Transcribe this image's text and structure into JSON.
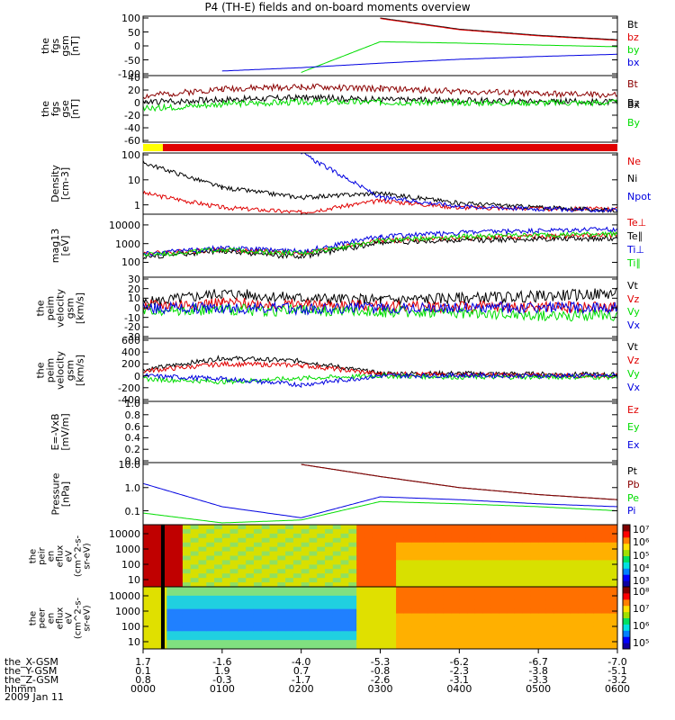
{
  "title": "P4 (TH-E) fields and on-board moments overview",
  "date_label": "2009 Jan 11",
  "x_axis_rows": [
    {
      "label": "the_X-GSM",
      "values": [
        "1.7",
        "-1.6",
        "-4.0",
        "-5.3",
        "-6.2",
        "-6.7",
        "-7.0"
      ]
    },
    {
      "label": "the_Y-GSM",
      "values": [
        "0.1",
        "1.9",
        "0.7",
        "-0.8",
        "-2.3",
        "-3.8",
        "-5.1"
      ]
    },
    {
      "label": "the_Z-GSM",
      "values": [
        "0.8",
        "-0.3",
        "-1.7",
        "-2.6",
        "-3.1",
        "-3.3",
        "-3.2"
      ]
    },
    {
      "label": "hhmm",
      "values": [
        "0000",
        "0100",
        "0200",
        "0300",
        "0400",
        "0500",
        "0600"
      ]
    }
  ],
  "colors": {
    "black": "#000000",
    "red": "#e00000",
    "green": "#00dd00",
    "blue": "#0000e0",
    "yellow": "#ffff00",
    "brown": "#8b0000",
    "orange": "#ff8c00"
  },
  "chart_data": [
    {
      "id": "fgs_gsm",
      "type": "line",
      "ytitle": [
        "the",
        "fgs",
        "gsm",
        "[nT]"
      ],
      "yticks": [
        "100",
        "50",
        "0",
        "-50",
        "-100"
      ],
      "ylim": [
        -100,
        100
      ],
      "x": [
        "0000",
        "0100",
        "0200",
        "0300",
        "0400",
        "0500",
        "0600"
      ],
      "series": [
        {
          "name": "Bt",
          "color": "black",
          "values": [
            null,
            null,
            null,
            100,
            60,
            38,
            22
          ]
        },
        {
          "name": "bz",
          "color": "red",
          "values": [
            null,
            null,
            null,
            98,
            58,
            36,
            20
          ]
        },
        {
          "name": "by",
          "color": "green",
          "values": [
            null,
            null,
            -95,
            15,
            10,
            3,
            -3
          ]
        },
        {
          "name": "bx",
          "color": "blue",
          "values": [
            null,
            -90,
            -78,
            -62,
            -48,
            -38,
            -30
          ]
        }
      ]
    },
    {
      "id": "fgs_gse",
      "type": "line",
      "ytitle": [
        "the",
        "fgs",
        "gse",
        "[nT]"
      ],
      "yticks": [
        "40",
        "20",
        "0",
        "-20",
        "-40",
        "-60"
      ],
      "ylim": [
        -60,
        40
      ],
      "x": [
        "0000",
        "0100",
        "0200",
        "0300",
        "0400",
        "0500",
        "0600"
      ],
      "legend_label": "Bx",
      "series": [
        {
          "name": "Bt",
          "color": "brown",
          "values": [
            10,
            22,
            25,
            22,
            18,
            14,
            12
          ]
        },
        {
          "name": "Bz",
          "color": "black",
          "values": [
            0,
            5,
            8,
            5,
            3,
            2,
            1
          ]
        },
        {
          "name": "By",
          "color": "green",
          "values": [
            -10,
            -2,
            1,
            1,
            0,
            0,
            0
          ]
        }
      ]
    },
    {
      "id": "mode_bar",
      "type": "bar",
      "segments": [
        {
          "color": "yellow",
          "from": "0000",
          "to": "0015"
        },
        {
          "color": "red",
          "from": "0015",
          "to": "0600"
        }
      ]
    },
    {
      "id": "density",
      "type": "line",
      "ytitle": [
        "Density",
        "[cm-3]"
      ],
      "yscale": "log",
      "yticks": [
        "100",
        "10",
        "1"
      ],
      "ylim": [
        0.5,
        100
      ],
      "x": [
        "0000",
        "0100",
        "0200",
        "0300",
        "0400",
        "0500",
        "0600"
      ],
      "series": [
        {
          "name": "Ne",
          "color": "red",
          "values": [
            3,
            0.8,
            0.5,
            1.5,
            0.8,
            0.7,
            0.7
          ]
        },
        {
          "name": "Ni",
          "color": "black",
          "values": [
            50,
            5,
            2,
            3,
            1.2,
            0.8,
            0.6
          ]
        },
        {
          "name": "Npot",
          "color": "blue",
          "values": [
            null,
            null,
            120,
            2,
            0.9,
            0.7,
            0.6
          ]
        }
      ]
    },
    {
      "id": "temperature",
      "type": "line",
      "ytitle": [
        "mag13",
        "[eV]"
      ],
      "yscale": "log",
      "yticks": [
        "10000",
        "1000",
        "100"
      ],
      "ylim": [
        20,
        30000
      ],
      "x": [
        "0000",
        "0100",
        "0200",
        "0300",
        "0400",
        "0500",
        "0600"
      ],
      "series": [
        {
          "name": "Te⊥",
          "color": "red",
          "values": [
            300,
            500,
            300,
            1500,
            2000,
            2500,
            2800
          ]
        },
        {
          "name": "Te∥",
          "color": "black",
          "values": [
            200,
            400,
            200,
            1200,
            1500,
            1800,
            2000
          ]
        },
        {
          "name": "Ti⊥",
          "color": "blue",
          "values": [
            300,
            600,
            400,
            2500,
            4000,
            5000,
            6000
          ]
        },
        {
          "name": "Ti∥",
          "color": "green",
          "values": [
            250,
            500,
            300,
            1500,
            2500,
            3000,
            3500
          ]
        }
      ]
    },
    {
      "id": "peim_velocity_gsm",
      "type": "line",
      "ytitle": [
        "the",
        "peim",
        "velocity",
        "gsm",
        "[km/s]"
      ],
      "yticks": [
        "30",
        "20",
        "10",
        "0",
        "-10",
        "-20",
        "-30"
      ],
      "ylim": [
        -30,
        30
      ],
      "x": [
        "0000",
        "0100",
        "0200",
        "0300",
        "0400",
        "0500",
        "0600"
      ],
      "series": [
        {
          "name": "Vt",
          "color": "black",
          "values": [
            5,
            15,
            10,
            8,
            10,
            12,
            15
          ]
        },
        {
          "name": "Vz",
          "color": "red",
          "values": [
            2,
            5,
            3,
            2,
            1,
            1,
            1
          ]
        },
        {
          "name": "Vy",
          "color": "green",
          "values": [
            -2,
            -2,
            -3,
            -4,
            -5,
            -8,
            -8
          ]
        },
        {
          "name": "Vx",
          "color": "blue",
          "values": [
            0,
            0,
            -1,
            0,
            0,
            0,
            0
          ]
        }
      ]
    },
    {
      "id": "peim_velocity_gsm_2",
      "type": "line",
      "ytitle": [
        "the",
        "peim",
        "velocity",
        "gsm",
        "[km/s]"
      ],
      "yticks": [
        "600",
        "400",
        "200",
        "0",
        "-200",
        "-400"
      ],
      "ylim": [
        -400,
        600
      ],
      "x": [
        "0000",
        "0100",
        "0200",
        "0300",
        "0400",
        "0500",
        "0600"
      ],
      "series": [
        {
          "name": "Vt",
          "color": "black",
          "values": [
            100,
            300,
            250,
            40,
            40,
            30,
            20
          ]
        },
        {
          "name": "Vz",
          "color": "red",
          "values": [
            80,
            200,
            180,
            30,
            20,
            10,
            0
          ]
        },
        {
          "name": "Vy",
          "color": "green",
          "values": [
            -50,
            -100,
            -40,
            0,
            -20,
            -20,
            -20
          ]
        },
        {
          "name": "Vx",
          "color": "blue",
          "values": [
            0,
            -50,
            -150,
            0,
            10,
            0,
            0
          ]
        }
      ]
    },
    {
      "id": "exb",
      "type": "line",
      "ytitle": [
        "E=-VxB",
        "[mV/m]"
      ],
      "yticks": [
        "1.0",
        "0.8",
        "0.6",
        "0.4",
        "0.2",
        "0.0"
      ],
      "ylim": [
        0,
        1
      ],
      "series": [
        {
          "name": "Ez",
          "color": "red",
          "values": []
        },
        {
          "name": "Ey",
          "color": "green",
          "values": []
        },
        {
          "name": "Ex",
          "color": "blue",
          "values": []
        }
      ]
    },
    {
      "id": "pressure",
      "type": "line",
      "ytitle": [
        "Pressure",
        "[nPa]"
      ],
      "yscale": "log",
      "yticks": [
        "10.0",
        "1.0",
        "0.1"
      ],
      "ylim": [
        0.03,
        10
      ],
      "x": [
        "0000",
        "0100",
        "0200",
        "0300",
        "0400",
        "0500",
        "0600"
      ],
      "series": [
        {
          "name": "Pt",
          "color": "black",
          "values": [
            null,
            null,
            10,
            3,
            1,
            0.5,
            0.3
          ]
        },
        {
          "name": "Pb",
          "color": "brown",
          "values": [
            null,
            null,
            10,
            3,
            1,
            0.5,
            0.3
          ]
        },
        {
          "name": "Pe",
          "color": "green",
          "values": [
            0.08,
            0.03,
            0.04,
            0.25,
            0.2,
            0.15,
            0.1
          ]
        },
        {
          "name": "Pi",
          "color": "blue",
          "values": [
            1.5,
            0.15,
            0.05,
            0.4,
            0.3,
            0.2,
            0.15
          ]
        }
      ]
    },
    {
      "id": "peir_en_eflux",
      "type": "heatmap",
      "ytitle": [
        "the",
        "peir",
        "en",
        "eflux",
        "eV",
        "(cm^2-s-",
        "sr-eV)"
      ],
      "yscale": "log",
      "yticks": [
        "10000",
        "1000",
        "100",
        "10"
      ],
      "colorbar_ticks": [
        "10⁷",
        "10⁶",
        "10⁵",
        "10⁴",
        "10³"
      ]
    },
    {
      "id": "peer_en_eflux",
      "type": "heatmap",
      "ytitle": [
        "the",
        "peer",
        "en",
        "eflux",
        "eV",
        "(cm^2-s-",
        "sr-eV)"
      ],
      "yscale": "log",
      "yticks": [
        "10000",
        "1000",
        "100",
        "10"
      ],
      "colorbar_ticks": [
        "10⁸",
        "10⁷",
        "10⁶",
        "10⁵"
      ]
    }
  ]
}
